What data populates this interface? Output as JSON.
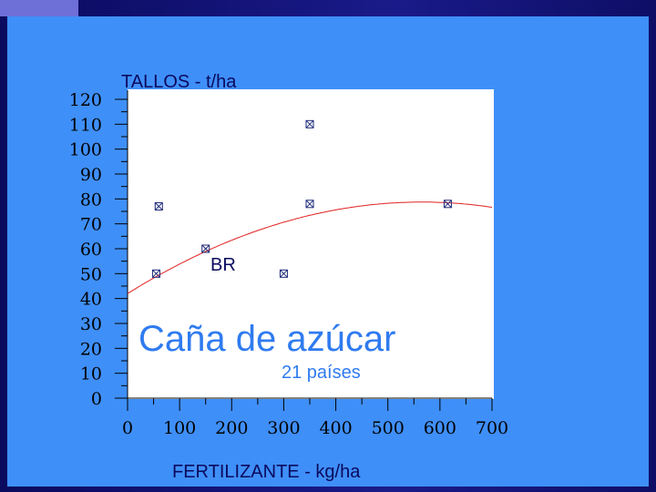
{
  "chart_data": {
    "type": "scatter",
    "title": "Caña de azúcar",
    "subtitle": "21 países",
    "ylabel": "TALLOS - t/ha",
    "xlabel": "FERTILIZANTE - kg/ha",
    "series_label": "BR",
    "xlim": [
      0,
      700
    ],
    "ylim": [
      0,
      120
    ],
    "xticks": [
      "0",
      "100",
      "200",
      "300",
      "400",
      "500",
      "600",
      "700"
    ],
    "yticks": [
      "120",
      "110",
      "100",
      "90",
      "80",
      "70",
      "60",
      "50",
      "40",
      "30",
      "20",
      "10",
      "0"
    ],
    "points": [
      {
        "x": 55,
        "y": 50
      },
      {
        "x": 60,
        "y": 77
      },
      {
        "x": 150,
        "y": 60
      },
      {
        "x": 300,
        "y": 50
      },
      {
        "x": 350,
        "y": 110
      },
      {
        "x": 350,
        "y": 78
      },
      {
        "x": 615,
        "y": 78
      }
    ],
    "fit_curve": {
      "type": "quadratic",
      "a": -0.000115,
      "b": 0.13,
      "c": 42.0
    },
    "colors": {
      "background": "#3f8ff8",
      "plot_area": "#ffffff",
      "marker": "#1e2a78",
      "fit_line": "#e02020",
      "title_text": "#2f7bf0",
      "label_text": "#0a0a5e"
    },
    "grid": false
  }
}
